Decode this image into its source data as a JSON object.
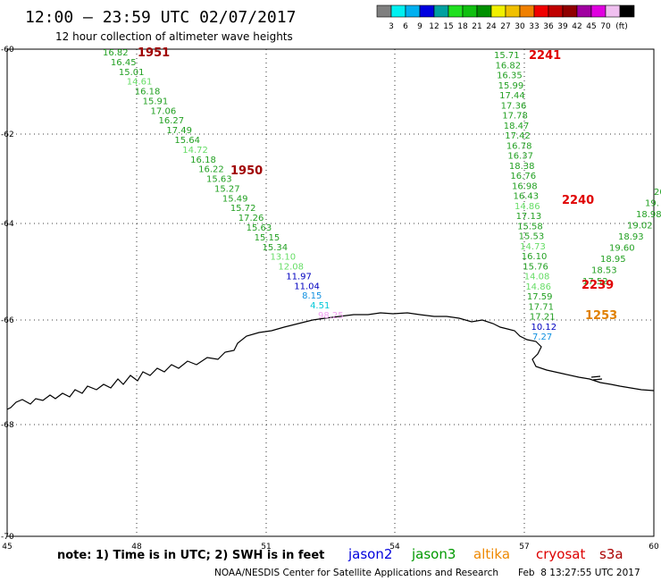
{
  "header": {
    "title": "12:00 – 23:59 UTC 02/07/2017",
    "subtitle": "12 hour collection of altimeter wave heights"
  },
  "color_scale": {
    "unit": "(ft)",
    "colors": [
      "#7f7f7f",
      "#00f0f0",
      "#00b0f0",
      "#0000e0",
      "#00a0a0",
      "#20e020",
      "#10c010",
      "#009000",
      "#f0f000",
      "#f0c000",
      "#f08000",
      "#f00000",
      "#c00000",
      "#900000",
      "#a000a0",
      "#e000e0",
      "#f0c0f0",
      "#000000"
    ],
    "labels": [
      "3",
      "6",
      "9",
      "12",
      "15",
      "18",
      "21",
      "24",
      "27",
      "30",
      "33",
      "36",
      "39",
      "42",
      "45",
      "70"
    ]
  },
  "axes": {
    "lon_ticks": [
      "45",
      "48",
      "51",
      "54",
      "57",
      "60"
    ],
    "lat_ticks": [
      "-60",
      "-62",
      "-64",
      "-66",
      "-68",
      "-70"
    ]
  },
  "time_labels": [
    {
      "text": "1951",
      "color": "#a00000"
    },
    {
      "text": "1950",
      "color": "#a00000"
    },
    {
      "text": "2241",
      "color": "#e00000"
    },
    {
      "text": "2240",
      "color": "#e00000"
    },
    {
      "text": "2239",
      "color": "#e00000"
    },
    {
      "text": "1253",
      "color": "#e08000"
    }
  ],
  "track_west": [
    {
      "v": "16.82",
      "c": "#22a022"
    },
    {
      "v": "16.45",
      "c": "#22a022"
    },
    {
      "v": "15.01",
      "c": "#22a022"
    },
    {
      "v": "14.61",
      "c": "#66dd66"
    },
    {
      "v": "16.18",
      "c": "#22a022"
    },
    {
      "v": "15.91",
      "c": "#22a022"
    },
    {
      "v": "17.06",
      "c": "#22a022"
    },
    {
      "v": "16.27",
      "c": "#22a022"
    },
    {
      "v": "17.49",
      "c": "#22a022"
    },
    {
      "v": "15.64",
      "c": "#22a022"
    },
    {
      "v": "14.72",
      "c": "#66dd66"
    },
    {
      "v": "16.18",
      "c": "#22a022"
    },
    {
      "v": "16.22",
      "c": "#22a022"
    },
    {
      "v": "15.63",
      "c": "#22a022"
    },
    {
      "v": "15.27",
      "c": "#22a022"
    },
    {
      "v": "15.49",
      "c": "#22a022"
    },
    {
      "v": "15.72",
      "c": "#22a022"
    },
    {
      "v": "17.26",
      "c": "#22a022"
    },
    {
      "v": "15.63",
      "c": "#22a022"
    },
    {
      "v": "15.15",
      "c": "#22a022"
    },
    {
      "v": "15.34",
      "c": "#22a022"
    },
    {
      "v": "13.10",
      "c": "#66dd66"
    },
    {
      "v": "12.08",
      "c": "#66dd66"
    },
    {
      "v": "11.97",
      "c": "#0000c0"
    },
    {
      "v": "11.04",
      "c": "#0000c0"
    },
    {
      "v": "8.15",
      "c": "#1090e0"
    },
    {
      "v": "4.51",
      "c": "#00c8d8"
    },
    {
      "v": "98.25",
      "c": "#f0a0f0"
    }
  ],
  "track_east": [
    {
      "v": "15.71",
      "c": "#22a022"
    },
    {
      "v": "16.82",
      "c": "#22a022"
    },
    {
      "v": "16.35",
      "c": "#22a022"
    },
    {
      "v": "15.99",
      "c": "#22a022"
    },
    {
      "v": "17.44",
      "c": "#22a022"
    },
    {
      "v": "17.36",
      "c": "#22a022"
    },
    {
      "v": "17.78",
      "c": "#22a022"
    },
    {
      "v": "18.47",
      "c": "#22a022"
    },
    {
      "v": "17.42",
      "c": "#22a022"
    },
    {
      "v": "16.78",
      "c": "#22a022"
    },
    {
      "v": "16.37",
      "c": "#22a022"
    },
    {
      "v": "18.38",
      "c": "#22a022"
    },
    {
      "v": "16.76",
      "c": "#22a022"
    },
    {
      "v": "16.98",
      "c": "#22a022"
    },
    {
      "v": "16.43",
      "c": "#22a022"
    },
    {
      "v": "14.86",
      "c": "#66dd66"
    },
    {
      "v": "17.13",
      "c": "#22a022"
    },
    {
      "v": "15.58",
      "c": "#22a022"
    },
    {
      "v": "15.53",
      "c": "#22a022"
    },
    {
      "v": "14.73",
      "c": "#66dd66"
    },
    {
      "v": "16.10",
      "c": "#22a022"
    },
    {
      "v": "15.76",
      "c": "#22a022"
    },
    {
      "v": "14.08",
      "c": "#66dd66"
    },
    {
      "v": "14.86",
      "c": "#66dd66"
    },
    {
      "v": "17.59",
      "c": "#22a022"
    },
    {
      "v": "17.71",
      "c": "#22a022"
    },
    {
      "v": "17.21",
      "c": "#22a022"
    },
    {
      "v": "10.12",
      "c": "#0000c0"
    },
    {
      "v": "7.27",
      "c": "#1090e0"
    }
  ],
  "track_right": [
    {
      "v": "20",
      "c": "#22a022"
    },
    {
      "v": "19.",
      "c": "#22a022"
    },
    {
      "v": "18.98",
      "c": "#22a022"
    },
    {
      "v": "19.02",
      "c": "#22a022"
    },
    {
      "v": "18.93",
      "c": "#22a022"
    },
    {
      "v": "19.60",
      "c": "#22a022"
    },
    {
      "v": "18.95",
      "c": "#22a022"
    },
    {
      "v": "18.53",
      "c": "#22a022"
    },
    {
      "v": "17.52",
      "c": "#22a022"
    }
  ],
  "footer": {
    "note": "note: 1) Time is in UTC; 2) SWH is in feet",
    "credit": "NOAA/NESDIS Center for Satellite Applications and Research",
    "timestamp": "Feb  8 13:27:55 UTC 2017",
    "satellites": [
      {
        "name": "jason2",
        "color": "#0000dd"
      },
      {
        "name": "jason3",
        "color": "#009900"
      },
      {
        "name": "altika",
        "color": "#ee8800"
      },
      {
        "name": "cryosat",
        "color": "#dd0000"
      },
      {
        "name": "s3a",
        "color": "#aa0000"
      }
    ]
  }
}
